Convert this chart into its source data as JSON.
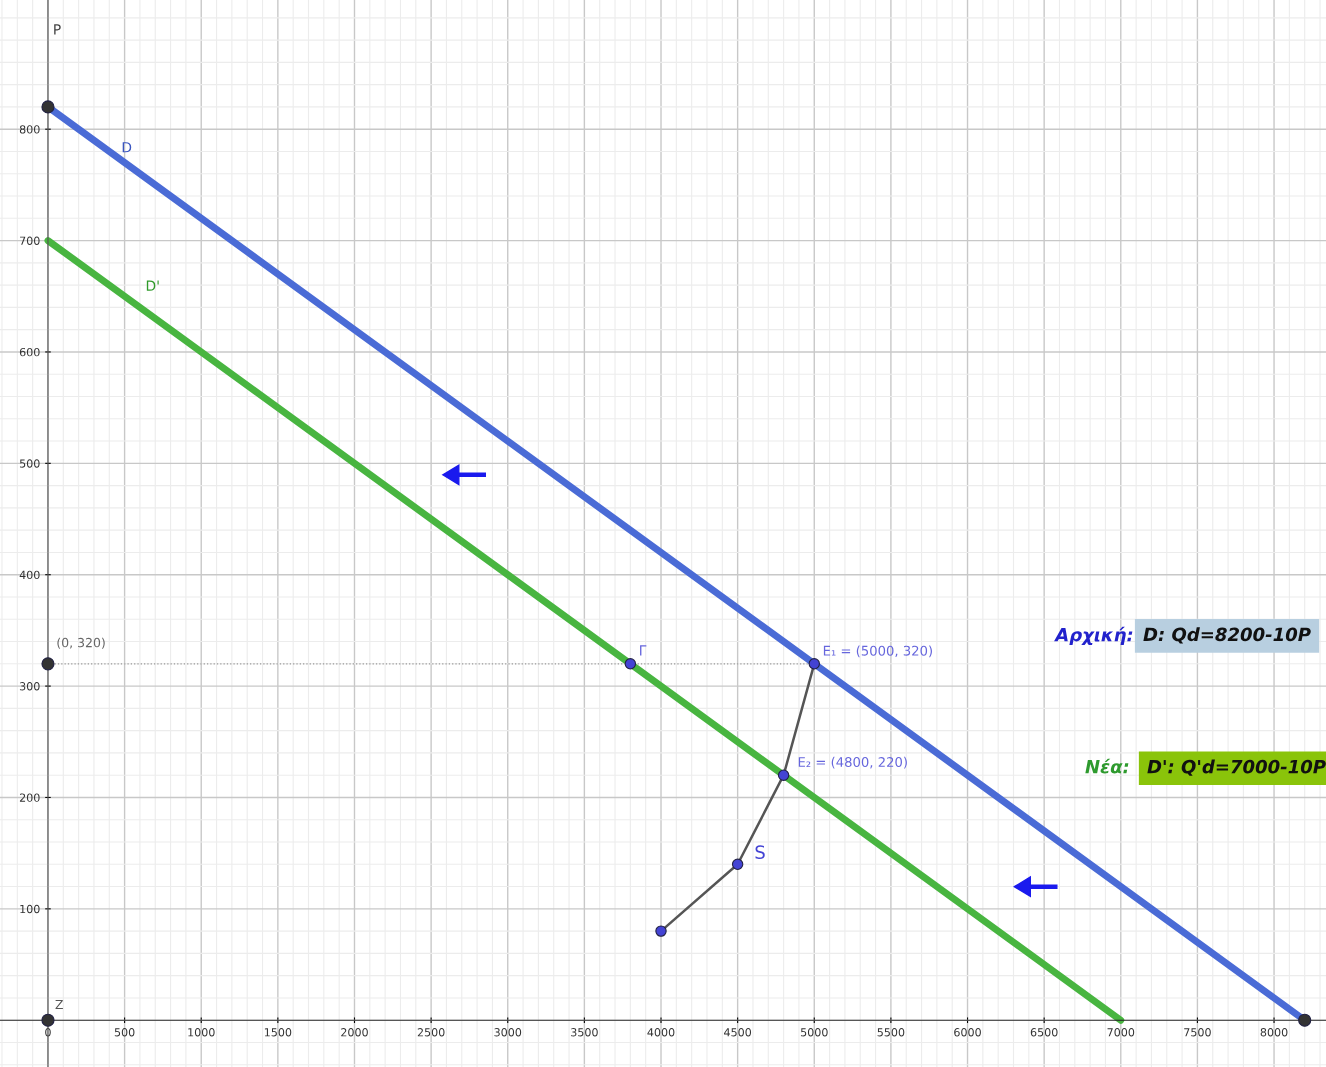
{
  "chart_data": {
    "type": "line",
    "ylabel": "P",
    "xlim": [
      -313,
      8339
    ],
    "ylim": [
      -42,
      916
    ],
    "xticks": [
      0,
      500,
      1000,
      1500,
      2000,
      2500,
      3000,
      3500,
      4000,
      4500,
      5000,
      5500,
      6000,
      6500,
      7000,
      7500,
      8000
    ],
    "yticks": [
      100,
      200,
      300,
      400,
      500,
      600,
      700,
      800
    ],
    "grid": true,
    "series": [
      {
        "color": "#4a6bd6",
        "x": [
          0,
          8200
        ],
        "values": [
          820,
          0
        ]
      },
      {
        "color": "#48b540",
        "x": [
          0,
          7000
        ],
        "values": [
          700,
          0
        ]
      },
      {
        "type": "line",
        "color": "#555555",
        "x": [
          4000,
          4500,
          4800,
          5000
        ],
        "values": [
          80,
          140,
          220,
          320
        ]
      },
      {
        "type": "line",
        "color": "#999999",
        "line_style": "dotted",
        "x": [
          0,
          5000
        ],
        "values": [
          320,
          320
        ]
      },
      {
        "type": "scatter",
        "color": "#4343d4",
        "marker": "circle",
        "x": [
          4000,
          4500,
          4800,
          5000,
          3800
        ],
        "values": [
          80,
          140,
          220,
          320,
          320
        ]
      },
      {
        "type": "scatter",
        "color": "#333333",
        "marker": "circle",
        "x": [
          0,
          0,
          0,
          8200
        ],
        "values": [
          820,
          320,
          0,
          0
        ]
      }
    ],
    "annotations": [
      {
        "text": "D",
        "x": 515,
        "y": 768
      },
      {
        "text": "D'",
        "x": 600,
        "y": 640
      },
      {
        "text": "Z",
        "x": 0,
        "y": 0
      },
      {
        "text": "(0, 320)",
        "x": 0,
        "y": 320
      },
      {
        "text": "Γ",
        "x": 3800,
        "y": 320
      },
      {
        "text": "E₁ = (5000, 320)",
        "x": 5000,
        "y": 320
      },
      {
        "text": "E₂ = (4800, 220)",
        "x": 4800,
        "y": 220
      },
      {
        "text": "S",
        "x": 4500,
        "y": 140
      },
      "Αρχική:",
      "D: Qd=8200-10P",
      "Νέα:",
      "D': Q'd=7000-10P"
    ]
  }
}
